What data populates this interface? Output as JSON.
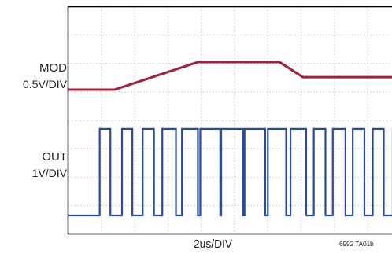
{
  "chart_data": {
    "type": "line",
    "xlabel": "2us/DIV",
    "figure_id": "6992 TA01b",
    "divisions": {
      "x": 10,
      "y": 8
    },
    "grid": true,
    "series": [
      {
        "name": "MOD",
        "scale": "0.5V/DIV",
        "color": "#a31f3c",
        "x_div": [
          0,
          1.4,
          3.9,
          6.35,
          7.05,
          7.3,
          10
        ],
        "y_div": [
          5.08,
          5.08,
          6.05,
          6.05,
          5.52,
          5.52,
          5.52
        ]
      },
      {
        "name": "OUT",
        "scale": "1V/DIV",
        "color": "#2a4a9a",
        "high_div": 3.7,
        "low_div": 0.65,
        "pulses_div": [
          [
            0.95,
            1.27
          ],
          [
            1.62,
            1.93
          ],
          [
            2.24,
            2.58
          ],
          [
            2.83,
            3.24
          ],
          [
            3.42,
            3.9
          ],
          [
            3.97,
            4.57
          ],
          [
            4.6,
            5.25
          ],
          [
            5.3,
            5.92
          ],
          [
            6.0,
            6.55
          ],
          [
            6.68,
            7.15
          ],
          [
            7.38,
            7.73
          ],
          [
            7.95,
            8.33
          ],
          [
            8.55,
            8.9
          ],
          [
            9.15,
            9.48
          ],
          [
            9.75,
            10.0
          ]
        ]
      }
    ]
  }
}
